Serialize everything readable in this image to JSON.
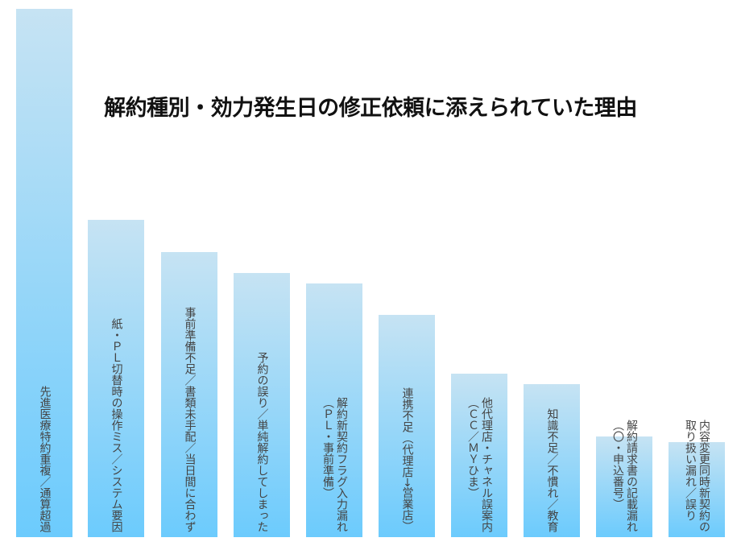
{
  "chart_data": {
    "type": "bar",
    "title": "解約種別・効力発生日の修正依頼に添えられていた理由",
    "categories": [
      "先進医療特約重複／通算超過",
      "紙・ＰＬ切替時の操作ミス／システム要因",
      "事前準備不足／書類未手配／当日間に合わず",
      "予約の誤り／単純解約してしまった",
      "解約新契約フラグ入力漏れ\n（ＰＬ・事前準備）",
      "連携不足（代理店→営業店）",
      "他代理店・チャネル誤案内\n（ＣＣ／ＭＹひま）",
      "知識不足／不慣れ／教育",
      "解約請求書の記載漏れ\n（〇・申込番号）",
      "内容変更同時新契約の\n取り扱い漏れ／誤り"
    ],
    "values": [
      100,
      60,
      54,
      50,
      48,
      42,
      31,
      29,
      19,
      18
    ],
    "ylim": [
      0,
      100
    ],
    "xlabel": "",
    "ylabel": "",
    "grid": false,
    "colors": {
      "bar_top": "#c6e3f3",
      "bar_bottom": "#6ccbfd"
    }
  }
}
